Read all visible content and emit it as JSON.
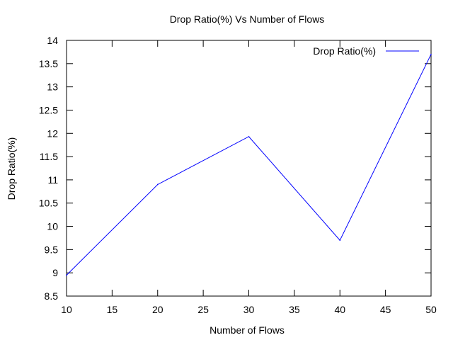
{
  "chart_data": {
    "type": "line",
    "title": "Drop Ratio(%)  Vs Number of Flows",
    "xlabel": "Number of Flows",
    "ylabel": "Drop Ratio(%)",
    "xlim": [
      10,
      50
    ],
    "ylim": [
      8.5,
      14
    ],
    "xticks": [
      10,
      15,
      20,
      25,
      30,
      35,
      40,
      45,
      50
    ],
    "yticks": [
      8.5,
      9,
      9.5,
      10,
      10.5,
      11,
      11.5,
      12,
      12.5,
      13,
      13.5,
      14
    ],
    "grid": false,
    "legend_position": "top-right",
    "series": [
      {
        "name": "Drop Ratio(%)",
        "color": "#0000ff",
        "x": [
          10,
          20,
          30,
          40,
          50
        ],
        "values": [
          8.95,
          10.9,
          11.93,
          9.7,
          13.7
        ]
      }
    ]
  }
}
